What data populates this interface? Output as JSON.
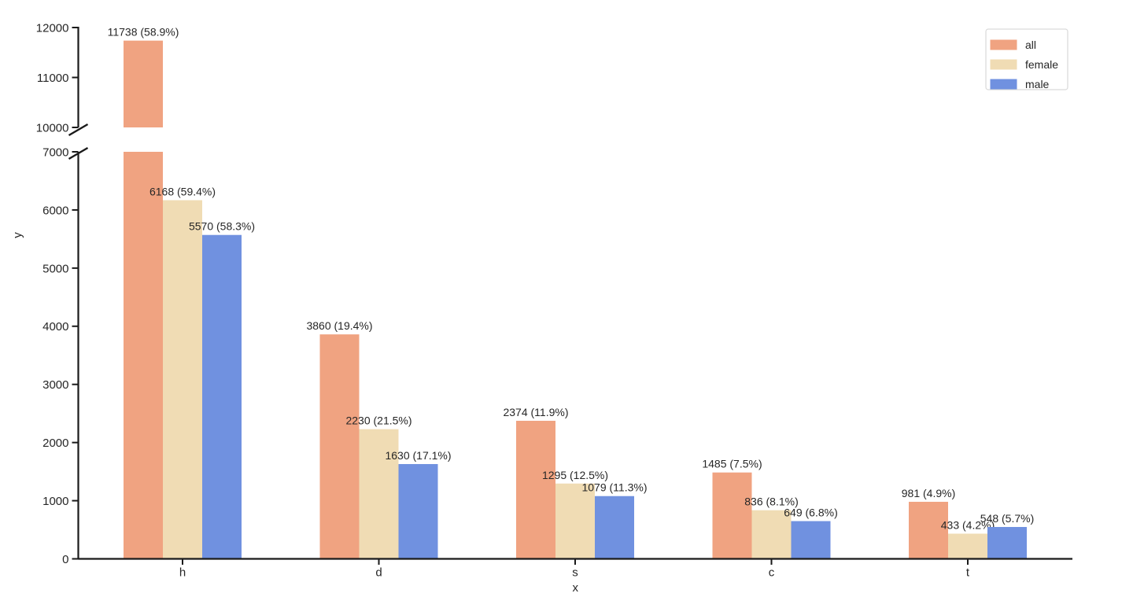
{
  "chart_data": {
    "type": "bar",
    "title": "",
    "xlabel": "x",
    "ylabel": "y",
    "categories": [
      "h",
      "d",
      "s",
      "c",
      "t"
    ],
    "series": [
      {
        "name": "all",
        "color": "#F0A381",
        "values": [
          11738,
          3860,
          2374,
          1485,
          981
        ],
        "labels": [
          "11738 (58.9%)",
          "3860 (19.4%)",
          "2374 (11.9%)",
          "1485 (7.5%)",
          "981 (4.9%)"
        ]
      },
      {
        "name": "female",
        "color": "#F0DCB4",
        "values": [
          6168,
          2230,
          1295,
          836,
          433
        ],
        "labels": [
          "6168 (59.4%)",
          "2230 (21.5%)",
          "1295 (12.5%)",
          "836 (8.1%)",
          "433 (4.2%)"
        ]
      },
      {
        "name": "male",
        "color": "#7091E0",
        "values": [
          5570,
          1630,
          1079,
          649,
          548
        ],
        "labels": [
          "5570 (58.3%)",
          "1630 (17.1%)",
          "1079 (11.3%)",
          "649 (6.8%)",
          "548 (5.7%)"
        ]
      }
    ],
    "broken_y_axis": {
      "top_panel": {
        "ylim": [
          10000,
          12000
        ],
        "ticks": [
          10000,
          11000,
          12000
        ]
      },
      "bottom_panel": {
        "ylim": [
          0,
          7000
        ],
        "ticks": [
          0,
          1000,
          2000,
          3000,
          4000,
          5000,
          6000,
          7000
        ]
      }
    },
    "legend": {
      "position": "top-right",
      "entries": [
        "all",
        "female",
        "male"
      ]
    },
    "grid": false,
    "background": "#ffffff",
    "text_color": "#262626",
    "axis_color": "#1a1a1a",
    "legend_border_color": "#d9d9d9"
  }
}
